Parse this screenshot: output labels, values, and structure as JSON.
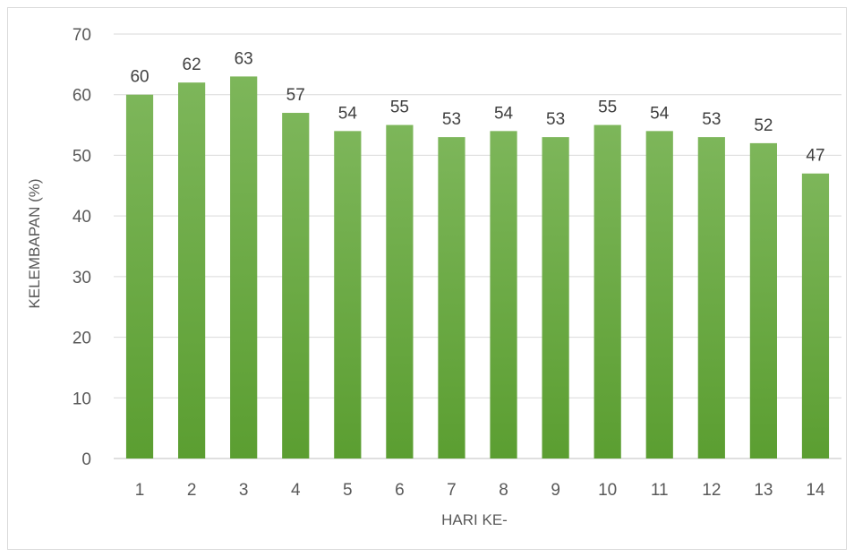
{
  "chart_data": {
    "type": "bar",
    "categories": [
      "1",
      "2",
      "3",
      "4",
      "5",
      "6",
      "7",
      "8",
      "9",
      "10",
      "11",
      "12",
      "13",
      "14"
    ],
    "values": [
      60,
      62,
      63,
      57,
      54,
      55,
      53,
      54,
      53,
      55,
      54,
      53,
      52,
      47
    ],
    "title": "",
    "xlabel": "HARI KE-",
    "ylabel": "KELEMBAPAN (%)",
    "ylim": [
      0,
      70
    ],
    "yticks": [
      0,
      10,
      20,
      30,
      40,
      50,
      60,
      70
    ],
    "grid": true,
    "legend": "none",
    "data_labels": true,
    "colors": {
      "bar_top": "#7db65a",
      "bar_bottom": "#5b9e31",
      "grid": "#d9d9d9",
      "axis": "#bfbfbf"
    }
  }
}
